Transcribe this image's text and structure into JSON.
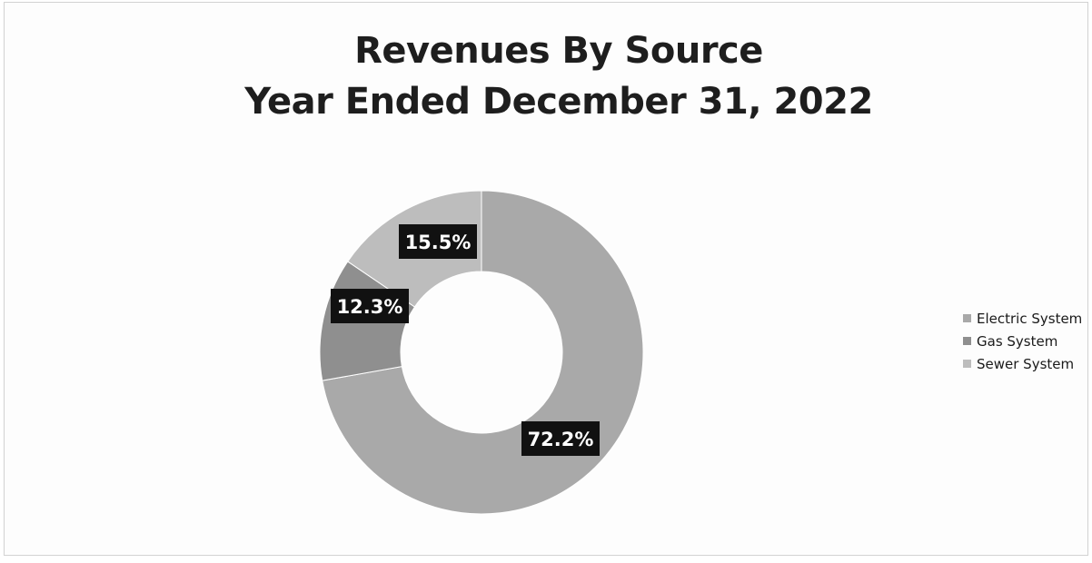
{
  "chart_data": {
    "type": "pie",
    "subtype": "donut",
    "title": "Revenues By Source",
    "subtitle": "Year Ended December 31, 2022",
    "slices": [
      {
        "label": "Electric System",
        "value": 72.2,
        "value_label": "72.2%",
        "color": "#a9a9a9"
      },
      {
        "label": "Gas System",
        "value": 12.3,
        "value_label": "12.3%",
        "color": "#8f8f8f"
      },
      {
        "label": "Sewer System",
        "value": 15.5,
        "value_label": "15.5%",
        "color": "#bdbdbd"
      }
    ],
    "legend_position": "right",
    "data_label_style": {
      "background": "#111111",
      "color": "#ffffff"
    }
  }
}
